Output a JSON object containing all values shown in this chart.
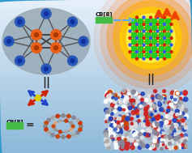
{
  "bg_color_top": "#c8e8f8",
  "bg_color_bottom": "#50a8e0",
  "ellipse_color": "#9aabb8",
  "orange_node_color": "#e8601c",
  "blue_node_color": "#2858b8",
  "green_block_color": "#22cc22",
  "orange_glow_outer": "#ff6600",
  "orange_glow_mid": "#ff9900",
  "yellow_center_color": "#ffdd00",
  "cb8_green_color": "#44bb44",
  "cb8_text": "CB[8]",
  "figsize": [
    2.37,
    1.89
  ],
  "dpi": 100
}
